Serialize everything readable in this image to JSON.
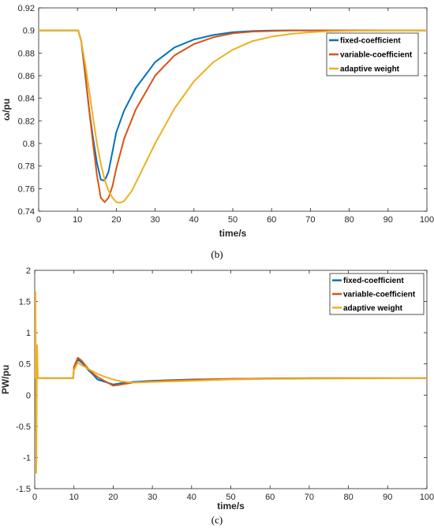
{
  "chart_data": [
    {
      "type": "line",
      "caption": "(b)",
      "xlabel": "time/s",
      "ylabel": "ω/pu",
      "xlim": [
        0,
        100
      ],
      "ylim": [
        0.74,
        0.92
      ],
      "xticks": [
        0,
        10,
        20,
        30,
        40,
        50,
        60,
        70,
        80,
        90,
        100
      ],
      "yticks": [
        0.74,
        0.76,
        0.78,
        0.8,
        0.82,
        0.84,
        0.86,
        0.88,
        0.9,
        0.92
      ],
      "grid": false,
      "legend": "upper-right",
      "series": [
        {
          "name": "fixed-coefficient",
          "color": "#0072BD",
          "x": [
            0,
            10.2,
            11,
            12,
            13,
            14,
            15,
            16,
            17,
            18,
            20,
            22,
            25,
            30,
            35,
            40,
            45,
            50,
            55,
            60,
            65,
            70,
            80,
            90,
            100
          ],
          "y": [
            0.9,
            0.9,
            0.89,
            0.86,
            0.83,
            0.805,
            0.783,
            0.768,
            0.767,
            0.775,
            0.81,
            0.829,
            0.849,
            0.872,
            0.885,
            0.892,
            0.896,
            0.8985,
            0.8995,
            0.8999,
            0.9,
            0.9,
            0.9,
            0.9,
            0.9
          ]
        },
        {
          "name": "variable-coefficient",
          "color": "#D95319",
          "x": [
            0,
            10.2,
            11,
            12,
            13,
            14,
            15,
            16,
            17,
            18,
            19,
            20,
            22,
            25,
            30,
            35,
            40,
            45,
            50,
            55,
            60,
            65,
            70,
            80,
            90,
            100
          ],
          "y": [
            0.9,
            0.9,
            0.89,
            0.862,
            0.83,
            0.8,
            0.772,
            0.752,
            0.748,
            0.752,
            0.762,
            0.778,
            0.804,
            0.83,
            0.86,
            0.878,
            0.888,
            0.894,
            0.8975,
            0.899,
            0.8995,
            0.9,
            0.9,
            0.9,
            0.9,
            0.9
          ]
        },
        {
          "name": "adaptive weight",
          "color": "#EDB120",
          "x": [
            0,
            10.2,
            11,
            12,
            13,
            14,
            15,
            16,
            17,
            18,
            19,
            20,
            21,
            22,
            24,
            26,
            30,
            35,
            40,
            45,
            50,
            55,
            60,
            65,
            70,
            75,
            80,
            90,
            100
          ],
          "y": [
            0.9,
            0.9,
            0.89,
            0.87,
            0.847,
            0.823,
            0.8,
            0.782,
            0.768,
            0.758,
            0.752,
            0.748,
            0.7475,
            0.749,
            0.758,
            0.772,
            0.8,
            0.831,
            0.855,
            0.872,
            0.883,
            0.8905,
            0.8945,
            0.897,
            0.8985,
            0.8993,
            0.8997,
            0.9,
            0.9
          ]
        }
      ]
    },
    {
      "type": "line",
      "caption": "(c)",
      "xlabel": "time/s",
      "ylabel": "PW/pu",
      "xlim": [
        0,
        100
      ],
      "ylim": [
        -1.5,
        2
      ],
      "xticks": [
        0,
        10,
        20,
        30,
        40,
        50,
        60,
        70,
        80,
        90,
        100
      ],
      "yticks": [
        -1.5,
        -1,
        -0.5,
        0,
        0.5,
        1,
        1.5,
        2
      ],
      "grid": false,
      "legend": "upper-right",
      "series": [
        {
          "name": "fixed-coefficient",
          "color": "#0072BD",
          "x": [
            0,
            9.8,
            10,
            11,
            12,
            13,
            14,
            15,
            16,
            18,
            20,
            22,
            25,
            30,
            40,
            50,
            60,
            70,
            100
          ],
          "y": [
            0.27,
            0.27,
            0.42,
            0.57,
            0.52,
            0.45,
            0.38,
            0.32,
            0.25,
            0.21,
            0.17,
            0.19,
            0.21,
            0.23,
            0.25,
            0.26,
            0.265,
            0.27,
            0.27
          ]
        },
        {
          "name": "variable-coefficient",
          "color": "#D95319",
          "x": [
            0,
            9.8,
            10,
            11,
            12,
            13,
            14,
            15,
            16,
            18,
            20,
            22,
            25,
            30,
            40,
            50,
            60,
            70,
            100
          ],
          "y": [
            0.27,
            0.27,
            0.45,
            0.6,
            0.55,
            0.47,
            0.4,
            0.34,
            0.29,
            0.22,
            0.15,
            0.17,
            0.2,
            0.22,
            0.245,
            0.26,
            0.265,
            0.27,
            0.27
          ]
        },
        {
          "name": "adaptive weight",
          "color": "#EDB120",
          "x": [
            0,
            0.2,
            0.4,
            0.6,
            0.8,
            1.5,
            9.8,
            10,
            11,
            12,
            14,
            16,
            18,
            20,
            22,
            25,
            30,
            40,
            50,
            60,
            100
          ],
          "y": [
            0.27,
            1.65,
            -1.25,
            0.8,
            0.27,
            0.27,
            0.27,
            0.4,
            0.52,
            0.48,
            0.41,
            0.34,
            0.29,
            0.25,
            0.22,
            0.2,
            0.21,
            0.23,
            0.25,
            0.26,
            0.27
          ]
        }
      ]
    }
  ]
}
